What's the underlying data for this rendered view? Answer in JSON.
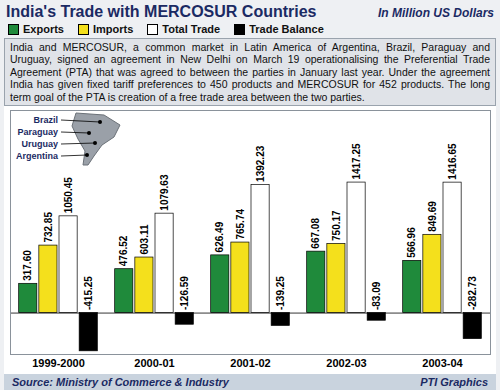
{
  "chart_data": {
    "type": "bar",
    "title": "India's Trade with MERCOSUR Countries",
    "subtitle": "In Million US Dollars",
    "text": "India and MERCOSUR, a common market in Latin America of Argentina, Brazil, Paraguay and Uruguay, signed an agreement in New Delhi on March 19 operationalising the Preferential Trade Agreement (PTA) that was agreed to between the parties in January last year. Under the agreement India has given fixed tariff preferences to 450 products and MERCOSUR for 452 products. The long term goal of the PTA is creation of a free trade area between the two parties.",
    "annotations": [
      "Brazil",
      "Paraguay",
      "Uruguay",
      "Argentina"
    ],
    "source": "Source: Ministry of Commerce & Industry",
    "credit": "PTI Graphics",
    "categories": [
      "1999-2000",
      "2000-01",
      "2001-02",
      "2002-03",
      "2003-04"
    ],
    "series": [
      {
        "name": "Exports",
        "color": "#1f8a3b",
        "values": [
          317.6,
          476.52,
          626.49,
          667.08,
          566.96
        ],
        "value_labels": [
          "317.60",
          "476.52",
          "626.49",
          "667.08",
          "566.96"
        ]
      },
      {
        "name": "Imports",
        "color": "#f4e01c",
        "values": [
          732.85,
          603.11,
          765.74,
          750.17,
          849.69
        ]
      },
      {
        "name": "Total Trade",
        "color": "#ffffff",
        "values": [
          1050.45,
          1079.63,
          1392.23,
          1417.25,
          1416.65
        ]
      },
      {
        "name": "Trade Balance",
        "color": "#000000",
        "values": [
          -415.25,
          -126.59,
          -139.25,
          -83.09,
          -282.73
        ]
      }
    ],
    "ylim": [
      -450,
      2200
    ],
    "legend": "top",
    "data_labels": true,
    "tick_labels": "x",
    "grid": false
  }
}
